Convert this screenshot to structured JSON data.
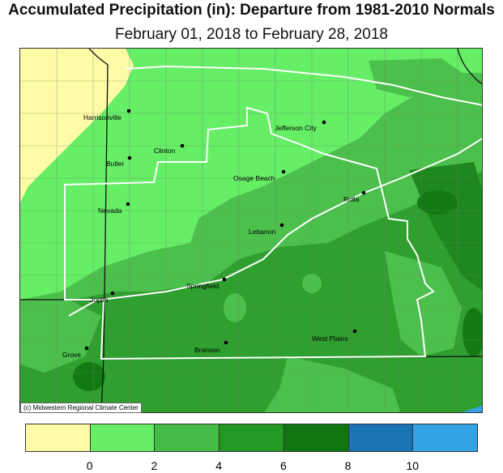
{
  "title": "Accumulated Precipitation (in): Departure from 1981-2010 Normals",
  "subtitle": "February 01, 2018 to February 28, 2018",
  "credit": "(c) Midwestern Regional Climate Center",
  "legend": {
    "bins": [
      {
        "color": "#fefba6",
        "range": "<0"
      },
      {
        "color": "#66ee66",
        "range": "0-2"
      },
      {
        "color": "#44bb44",
        "range": "2-4"
      },
      {
        "color": "#229922",
        "range": "4-6"
      },
      {
        "color": "#107710",
        "range": "6-8"
      },
      {
        "color": "#1a73b5",
        "range": "8-10"
      },
      {
        "color": "#33a3e6",
        "range": ">10"
      }
    ],
    "ticks": [
      "0",
      "2",
      "4",
      "6",
      "8",
      "10"
    ]
  },
  "cities": [
    {
      "name": "Harrisonville"
    },
    {
      "name": "Clinton"
    },
    {
      "name": "Butler"
    },
    {
      "name": "Jefferson City"
    },
    {
      "name": "Osage Beach"
    },
    {
      "name": "Rolla"
    },
    {
      "name": "Nevada"
    },
    {
      "name": "Lebanon"
    },
    {
      "name": "Joplin"
    },
    {
      "name": "Springfield"
    },
    {
      "name": "West Plains"
    },
    {
      "name": "Branson"
    },
    {
      "name": "Grove"
    }
  ]
}
